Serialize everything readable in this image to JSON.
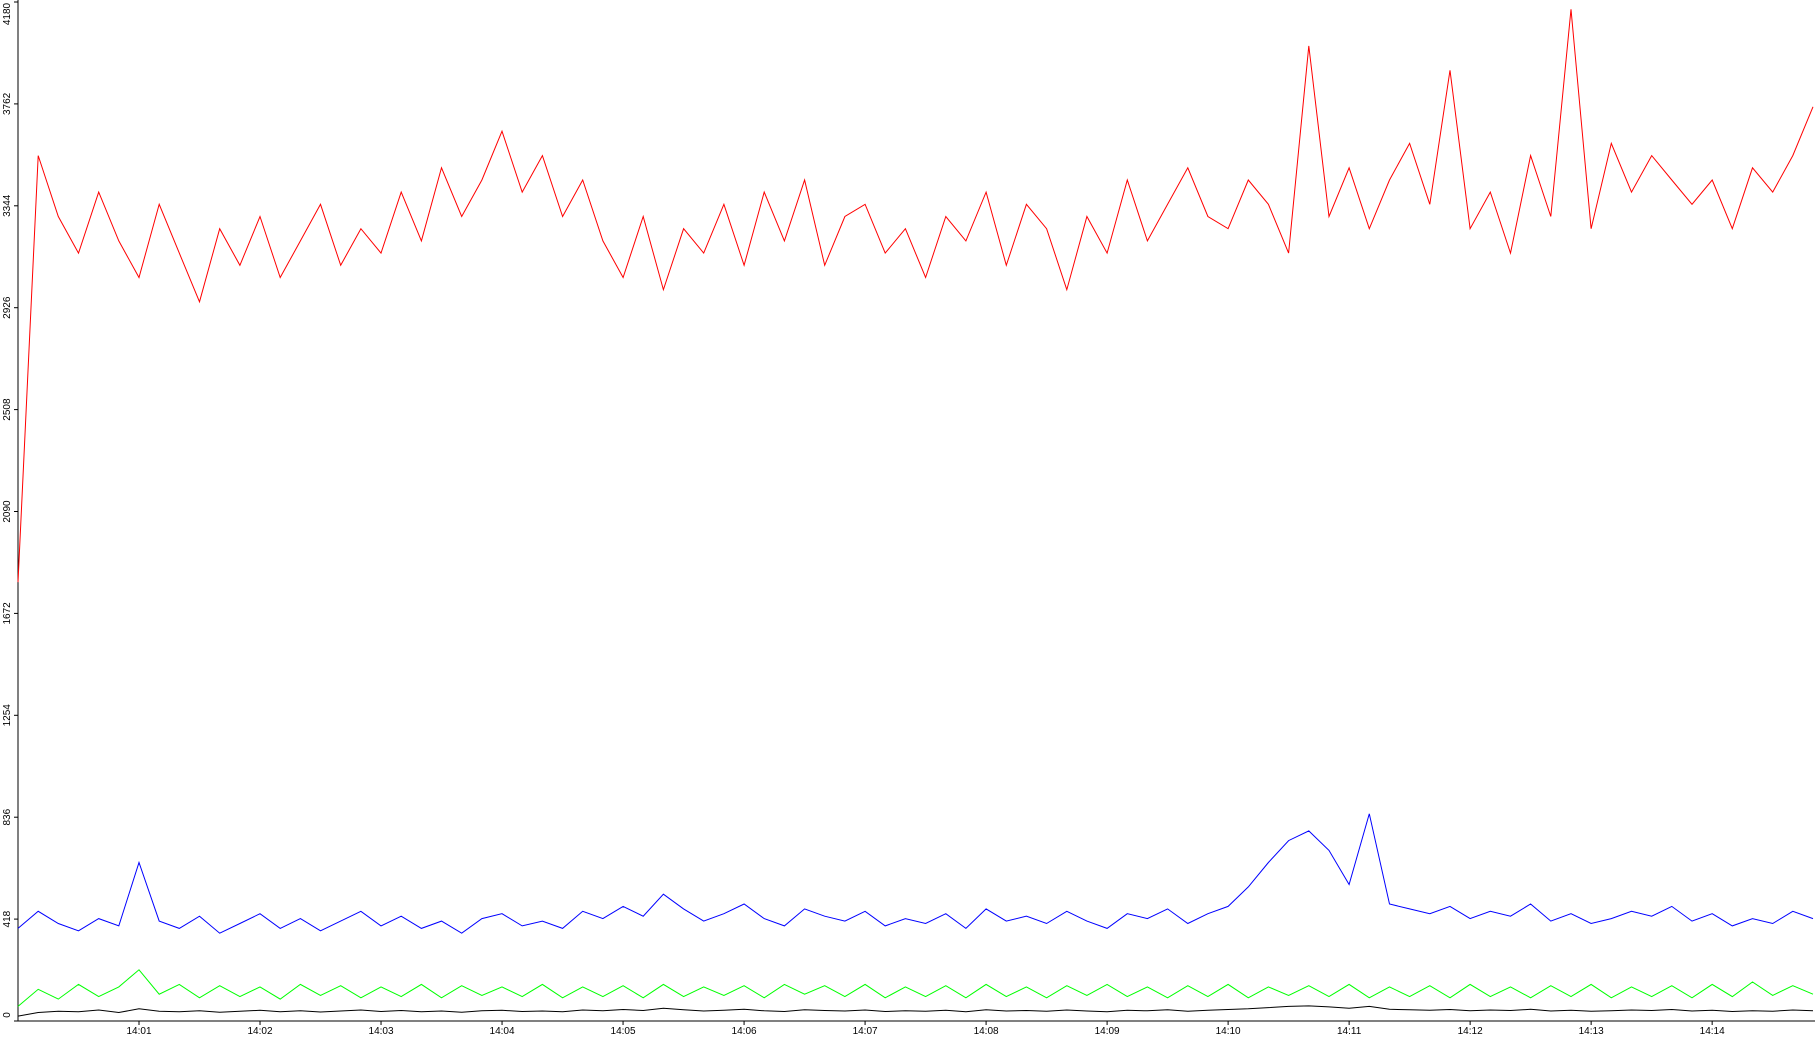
{
  "chart_data": {
    "type": "line",
    "categories": [
      null,
      null,
      null,
      null,
      null,
      null,
      "14:01",
      null,
      null,
      null,
      null,
      null,
      "14:02",
      null,
      null,
      null,
      null,
      null,
      "14:03",
      null,
      null,
      null,
      null,
      null,
      "14:04",
      null,
      null,
      null,
      null,
      null,
      "14:05",
      null,
      null,
      null,
      null,
      null,
      "14:06",
      null,
      null,
      null,
      null,
      null,
      "14:07",
      null,
      null,
      null,
      null,
      null,
      "14:08",
      null,
      null,
      null,
      null,
      null,
      "14:09",
      null,
      null,
      null,
      null,
      null,
      "14:10",
      null,
      null,
      null,
      null,
      null,
      "14:11",
      null,
      null,
      null,
      null,
      null,
      "14:12",
      null,
      null,
      null,
      null,
      null,
      "14:13",
      null,
      null,
      null,
      null,
      null,
      "14:14",
      null,
      null,
      null,
      null,
      null
    ],
    "series": [
      {
        "color": "#ff0000",
        "values": [
          1800,
          3550,
          3300,
          3150,
          3400,
          3200,
          3050,
          3350,
          3150,
          2950,
          3250,
          3100,
          3300,
          3050,
          3200,
          3350,
          3100,
          3250,
          3150,
          3400,
          3200,
          3500,
          3300,
          3450,
          3650,
          3400,
          3550,
          3300,
          3450,
          3200,
          3050,
          3300,
          3000,
          3250,
          3150,
          3350,
          3100,
          3400,
          3200,
          3450,
          3100,
          3300,
          3350,
          3150,
          3250,
          3050,
          3300,
          3200,
          3400,
          3100,
          3350,
          3250,
          3000,
          3300,
          3150,
          3450,
          3200,
          3350,
          3500,
          3300,
          3250,
          3450,
          3350,
          3150,
          4000,
          3300,
          3500,
          3250,
          3450,
          3600,
          3350,
          3900,
          3250,
          3400,
          3150,
          3550,
          3300,
          4150,
          3250,
          3600,
          3400,
          3550,
          3450,
          3350,
          3450,
          3250,
          3500,
          3400,
          3550,
          3750
        ]
      },
      {
        "color": "#0000ff",
        "values": [
          380,
          450,
          400,
          370,
          420,
          390,
          650,
          410,
          380,
          430,
          360,
          400,
          440,
          380,
          420,
          370,
          410,
          450,
          390,
          430,
          380,
          410,
          360,
          420,
          440,
          390,
          410,
          380,
          450,
          420,
          470,
          430,
          520,
          460,
          410,
          440,
          480,
          420,
          390,
          460,
          430,
          410,
          450,
          390,
          420,
          400,
          440,
          380,
          460,
          410,
          430,
          400,
          450,
          410,
          380,
          440,
          420,
          460,
          400,
          440,
          470,
          550,
          650,
          740,
          780,
          700,
          560,
          850,
          480,
          460,
          440,
          470,
          420,
          450,
          430,
          480,
          410,
          440,
          400,
          420,
          450,
          430,
          470,
          410,
          440,
          390,
          420,
          400,
          450,
          420
        ]
      },
      {
        "color": "#00ff00",
        "values": [
          60,
          130,
          90,
          150,
          100,
          140,
          210,
          110,
          150,
          95,
          145,
          100,
          140,
          90,
          150,
          105,
          145,
          95,
          140,
          100,
          150,
          95,
          145,
          105,
          140,
          100,
          150,
          95,
          140,
          100,
          145,
          95,
          150,
          100,
          140,
          105,
          145,
          95,
          150,
          110,
          145,
          100,
          150,
          95,
          140,
          100,
          145,
          95,
          150,
          100,
          140,
          95,
          145,
          105,
          150,
          100,
          140,
          95,
          145,
          100,
          150,
          95,
          140,
          105,
          145,
          100,
          150,
          95,
          140,
          100,
          145,
          95,
          150,
          100,
          140,
          95,
          145,
          100,
          150,
          95,
          140,
          100,
          145,
          95,
          150,
          100,
          160,
          105,
          145,
          110
        ]
      },
      {
        "color": "#000000",
        "values": [
          20,
          35,
          40,
          38,
          45,
          35,
          50,
          40,
          38,
          42,
          36,
          40,
          44,
          38,
          42,
          37,
          41,
          45,
          39,
          43,
          38,
          41,
          36,
          42,
          44,
          39,
          41,
          38,
          45,
          42,
          47,
          43,
          52,
          46,
          41,
          44,
          48,
          42,
          39,
          46,
          43,
          41,
          45,
          39,
          42,
          40,
          44,
          38,
          46,
          41,
          43,
          40,
          45,
          41,
          38,
          44,
          42,
          46,
          40,
          44,
          47,
          50,
          55,
          60,
          62,
          58,
          52,
          60,
          48,
          46,
          44,
          47,
          42,
          45,
          43,
          48,
          41,
          44,
          40,
          42,
          45,
          43,
          47,
          41,
          44,
          39,
          42,
          40,
          45,
          42
        ]
      }
    ],
    "ylim": [
      0,
      4180
    ],
    "yticks": [
      0,
      418,
      836,
      1254,
      1672,
      2090,
      2508,
      2926,
      3344,
      3762,
      4180
    ]
  }
}
